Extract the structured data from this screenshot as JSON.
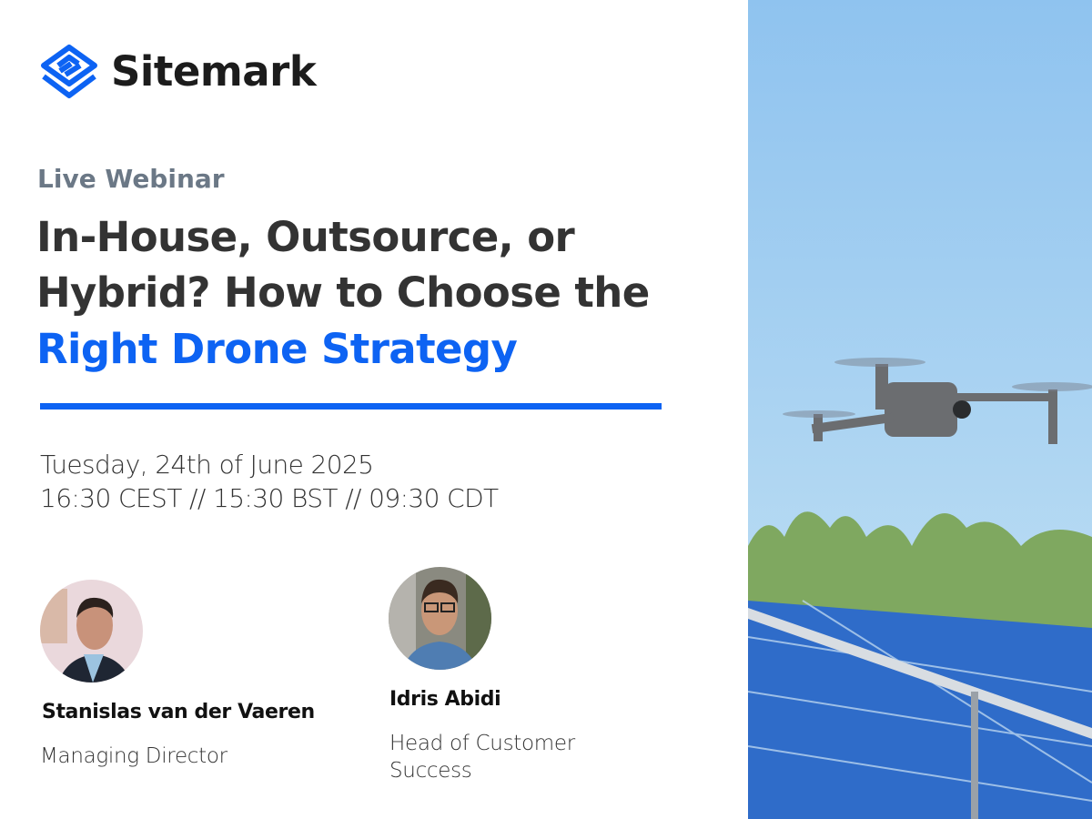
{
  "brand": {
    "name": "Sitemark",
    "color": "#0d63f3"
  },
  "eyebrow": "Live Webinar",
  "title": {
    "line1": "In-House, Outsource, or",
    "line2": "Hybrid? How to Choose the",
    "line3_highlight": "Right Drone Strategy",
    "highlight_color": "#0d63f3"
  },
  "event": {
    "date": "Tuesday, 24th of June 2025",
    "times": "16:30 CEST // 15:30 BST // 09:30 CDT"
  },
  "speakers": [
    {
      "name": "Stanislas van der Vaeren",
      "role": "Managing Director"
    },
    {
      "name": "Idris Abidi",
      "role": "Head of Customer Success"
    }
  ],
  "hero_image": "drone-over-solar-panels-photo"
}
